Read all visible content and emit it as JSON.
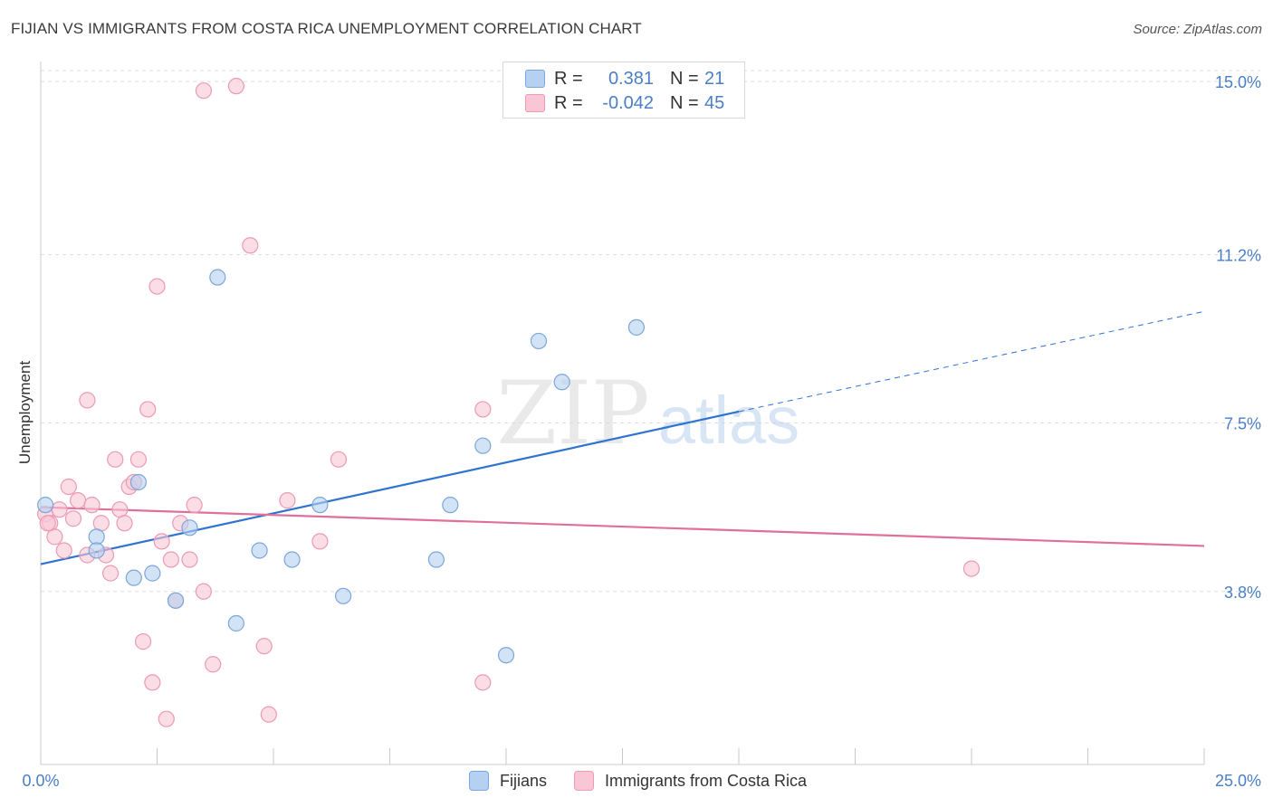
{
  "header": {
    "title": "FIJIAN VS IMMIGRANTS FROM COSTA RICA UNEMPLOYMENT CORRELATION CHART",
    "source": "Source: ZipAtlas.com"
  },
  "legend_top": {
    "rows": [
      {
        "r_label": "R =",
        "r_value": "0.381",
        "n_label": "N =",
        "n_value": "21"
      },
      {
        "r_label": "R =",
        "r_value": "-0.042",
        "n_label": "N =",
        "n_value": "45"
      }
    ]
  },
  "legend_bottom": {
    "items": [
      "Fijians",
      "Immigrants from Costa Rica"
    ]
  },
  "watermark": {
    "zip": "ZIP",
    "atlas": "atlas"
  },
  "colors": {
    "fijian_fill": "#b5d0f0",
    "fijian_stroke": "#7aa6dc",
    "fijian_line": "#2f73d0",
    "costa_fill": "#f8c6d5",
    "costa_stroke": "#ec9ab4",
    "costa_line": "#e0709a",
    "tick_label": "#4a7fc8",
    "grid": "#dddddd"
  },
  "chart_data": {
    "type": "scatter",
    "title": "FIJIAN VS IMMIGRANTS FROM COSTA RICA UNEMPLOYMENT CORRELATION CHART",
    "xlabel": "",
    "ylabel": "Unemployment",
    "xlim": [
      0,
      25
    ],
    "ylim": [
      0,
      15.3
    ],
    "x_tick_labels": [
      "0.0%",
      "25.0%"
    ],
    "y_ticks": [
      3.8,
      7.5,
      11.2,
      15.0
    ],
    "y_tick_labels": [
      "3.8%",
      "7.5%",
      "11.2%",
      "15.0%"
    ],
    "grid": true,
    "series": [
      {
        "name": "Fijians",
        "r": 0.381,
        "n": 21,
        "points": [
          [
            0.1,
            5.7
          ],
          [
            1.2,
            5.0
          ],
          [
            1.2,
            4.7
          ],
          [
            2.1,
            6.2
          ],
          [
            2.0,
            4.1
          ],
          [
            2.4,
            4.2
          ],
          [
            3.2,
            5.2
          ],
          [
            2.9,
            3.6
          ],
          [
            3.8,
            10.7
          ],
          [
            4.2,
            3.1
          ],
          [
            4.7,
            4.7
          ],
          [
            5.4,
            4.5
          ],
          [
            6.0,
            5.7
          ],
          [
            6.5,
            3.7
          ],
          [
            8.5,
            4.5
          ],
          [
            8.8,
            5.7
          ],
          [
            9.5,
            7.0
          ],
          [
            10.0,
            2.4
          ],
          [
            10.7,
            9.3
          ],
          [
            11.2,
            8.4
          ],
          [
            12.8,
            9.6
          ]
        ],
        "trend": {
          "x_start": 0,
          "y_start": 4.4,
          "x_end_solid": 15,
          "y_end_solid": 7.75,
          "x_end_dashed": 25,
          "y_end_dashed": 9.95
        }
      },
      {
        "name": "Immigrants from Costa Rica",
        "r": -0.042,
        "n": 45,
        "points": [
          [
            0.1,
            5.5
          ],
          [
            0.2,
            5.3
          ],
          [
            0.3,
            5.0
          ],
          [
            0.4,
            5.6
          ],
          [
            0.5,
            4.7
          ],
          [
            0.6,
            6.1
          ],
          [
            0.7,
            5.4
          ],
          [
            0.8,
            5.8
          ],
          [
            1.0,
            4.6
          ],
          [
            1.0,
            8.0
          ],
          [
            1.1,
            5.7
          ],
          [
            1.3,
            5.3
          ],
          [
            1.4,
            4.6
          ],
          [
            1.5,
            4.2
          ],
          [
            1.6,
            6.7
          ],
          [
            1.7,
            5.6
          ],
          [
            1.8,
            5.3
          ],
          [
            1.9,
            6.1
          ],
          [
            2.0,
            6.2
          ],
          [
            2.1,
            6.7
          ],
          [
            2.2,
            2.7
          ],
          [
            2.3,
            7.8
          ],
          [
            2.4,
            1.8
          ],
          [
            2.5,
            10.5
          ],
          [
            2.6,
            4.9
          ],
          [
            2.7,
            1.0
          ],
          [
            2.8,
            4.5
          ],
          [
            3.0,
            5.3
          ],
          [
            3.2,
            4.5
          ],
          [
            3.3,
            5.7
          ],
          [
            3.5,
            3.8
          ],
          [
            3.7,
            2.2
          ],
          [
            3.5,
            14.8
          ],
          [
            4.2,
            14.9
          ],
          [
            4.5,
            11.4
          ],
          [
            4.8,
            2.6
          ],
          [
            4.9,
            1.1
          ],
          [
            5.3,
            5.8
          ],
          [
            6.0,
            4.9
          ],
          [
            6.4,
            6.7
          ],
          [
            9.5,
            7.8
          ],
          [
            9.5,
            1.8
          ],
          [
            20.0,
            4.3
          ],
          [
            2.9,
            3.6
          ],
          [
            0.15,
            5.3
          ]
        ],
        "trend": {
          "x_start": 0,
          "y_start": 5.65,
          "x_end": 25,
          "y_end": 4.8
        }
      }
    ]
  }
}
